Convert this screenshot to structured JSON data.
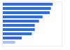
{
  "chart_data": {
    "type": "bar",
    "orientation": "horizontal",
    "categories": [
      null,
      null,
      null,
      null,
      null,
      null,
      null,
      null,
      null,
      null
    ],
    "values": [
      85,
      82,
      80,
      68,
      62,
      55,
      55,
      50,
      33,
      22
    ],
    "colors": [
      "#2f6fd6",
      "#2f6fd6",
      "#2f6fd6",
      "#2f6fd6",
      "#2f6fd6",
      "#2f6fd6",
      "#2f6fd6",
      "#2f6fd6",
      "#2f6fd6",
      "#a9c4ef"
    ],
    "xlim": [
      0,
      100
    ],
    "grid": false,
    "tick_labels": false
  }
}
